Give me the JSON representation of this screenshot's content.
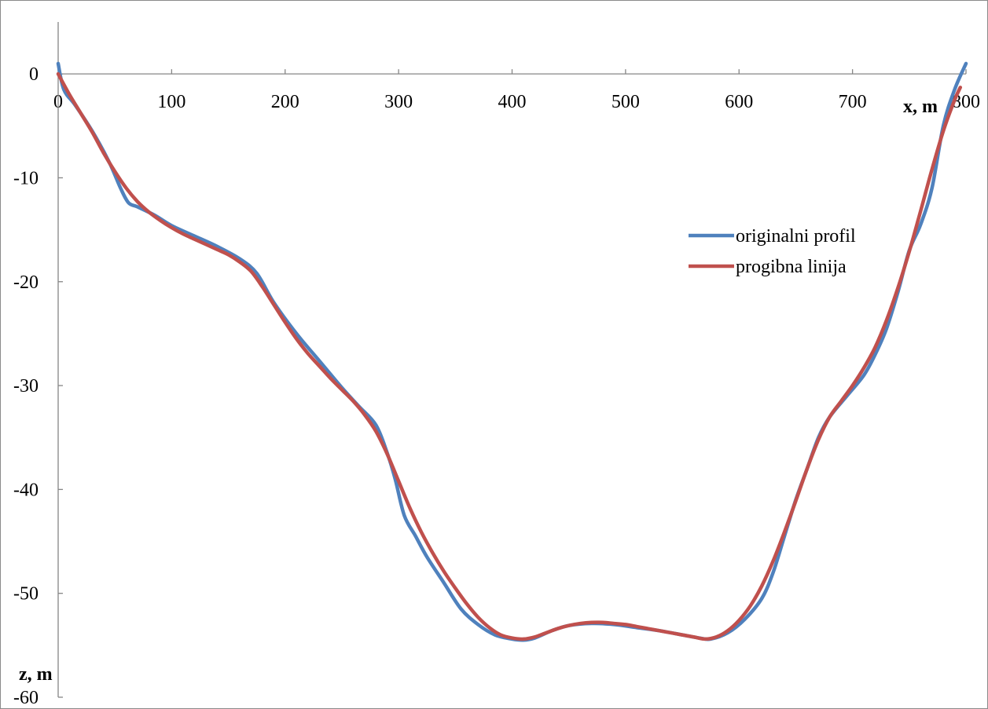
{
  "chart_data": {
    "type": "line",
    "title": "",
    "xlabel": "x, m",
    "ylabel": "z, m",
    "xlim": [
      0,
      800
    ],
    "ylim": [
      -60,
      5
    ],
    "x_ticks": [
      0,
      100,
      200,
      300,
      400,
      500,
      600,
      700,
      800
    ],
    "y_ticks": [
      0,
      -10,
      -20,
      -30,
      -40,
      -50,
      -60
    ],
    "grid": false,
    "legend_position": "right",
    "series": [
      {
        "name": "originalni profil",
        "color": "#4F81BD",
        "points": [
          [
            0,
            1
          ],
          [
            5,
            -1.5
          ],
          [
            15,
            -3
          ],
          [
            30,
            -5.5
          ],
          [
            45,
            -8.5
          ],
          [
            55,
            -11
          ],
          [
            62,
            -12.4
          ],
          [
            70,
            -12.8
          ],
          [
            85,
            -13.6
          ],
          [
            100,
            -14.6
          ],
          [
            120,
            -15.6
          ],
          [
            140,
            -16.6
          ],
          [
            160,
            -17.8
          ],
          [
            175,
            -19.2
          ],
          [
            190,
            -22
          ],
          [
            210,
            -25
          ],
          [
            230,
            -27.6
          ],
          [
            250,
            -30.2
          ],
          [
            265,
            -32
          ],
          [
            280,
            -33.8
          ],
          [
            290,
            -36.5
          ],
          [
            297,
            -39
          ],
          [
            305,
            -42.5
          ],
          [
            315,
            -44.5
          ],
          [
            325,
            -46.5
          ],
          [
            340,
            -49
          ],
          [
            355,
            -51.5
          ],
          [
            370,
            -53
          ],
          [
            385,
            -54
          ],
          [
            400,
            -54.4
          ],
          [
            410,
            -54.5
          ],
          [
            420,
            -54.3
          ],
          [
            435,
            -53.6
          ],
          [
            450,
            -53.1
          ],
          [
            470,
            -52.9
          ],
          [
            490,
            -53
          ],
          [
            510,
            -53.3
          ],
          [
            530,
            -53.6
          ],
          [
            550,
            -54
          ],
          [
            565,
            -54.3
          ],
          [
            575,
            -54.4
          ],
          [
            590,
            -53.8
          ],
          [
            605,
            -52.5
          ],
          [
            620,
            -50.5
          ],
          [
            630,
            -48
          ],
          [
            640,
            -44.5
          ],
          [
            650,
            -41
          ],
          [
            660,
            -38
          ],
          [
            670,
            -35
          ],
          [
            680,
            -33
          ],
          [
            695,
            -31
          ],
          [
            710,
            -29
          ],
          [
            720,
            -27
          ],
          [
            730,
            -24.5
          ],
          [
            740,
            -21
          ],
          [
            750,
            -17
          ],
          [
            760,
            -14.5
          ],
          [
            770,
            -11
          ],
          [
            780,
            -5
          ],
          [
            790,
            -1.5
          ],
          [
            800,
            1
          ]
        ]
      },
      {
        "name": "progibna linija",
        "color": "#C0504D",
        "points": [
          [
            0,
            0
          ],
          [
            10,
            -2
          ],
          [
            20,
            -3.8
          ],
          [
            30,
            -5.6
          ],
          [
            40,
            -7.6
          ],
          [
            50,
            -9.4
          ],
          [
            60,
            -11
          ],
          [
            70,
            -12.3
          ],
          [
            80,
            -13.3
          ],
          [
            90,
            -14.1
          ],
          [
            100,
            -14.8
          ],
          [
            110,
            -15.4
          ],
          [
            120,
            -15.9
          ],
          [
            130,
            -16.4
          ],
          [
            140,
            -16.9
          ],
          [
            150,
            -17.4
          ],
          [
            160,
            -18.1
          ],
          [
            170,
            -19
          ],
          [
            180,
            -20.5
          ],
          [
            190,
            -22.2
          ],
          [
            200,
            -23.9
          ],
          [
            210,
            -25.5
          ],
          [
            220,
            -26.9
          ],
          [
            230,
            -28.1
          ],
          [
            240,
            -29.3
          ],
          [
            250,
            -30.4
          ],
          [
            260,
            -31.5
          ],
          [
            270,
            -32.8
          ],
          [
            280,
            -34.4
          ],
          [
            290,
            -36.6
          ],
          [
            300,
            -39.2
          ],
          [
            310,
            -41.8
          ],
          [
            320,
            -44.1
          ],
          [
            330,
            -46.1
          ],
          [
            340,
            -47.9
          ],
          [
            350,
            -49.5
          ],
          [
            360,
            -51
          ],
          [
            370,
            -52.3
          ],
          [
            380,
            -53.3
          ],
          [
            390,
            -54
          ],
          [
            400,
            -54.3
          ],
          [
            410,
            -54.4
          ],
          [
            420,
            -54.2
          ],
          [
            430,
            -53.8
          ],
          [
            440,
            -53.4
          ],
          [
            450,
            -53.1
          ],
          [
            460,
            -52.9
          ],
          [
            470,
            -52.8
          ],
          [
            480,
            -52.8
          ],
          [
            490,
            -52.9
          ],
          [
            500,
            -53
          ],
          [
            510,
            -53.2
          ],
          [
            520,
            -53.4
          ],
          [
            530,
            -53.6
          ],
          [
            540,
            -53.8
          ],
          [
            550,
            -54
          ],
          [
            560,
            -54.2
          ],
          [
            570,
            -54.4
          ],
          [
            580,
            -54.2
          ],
          [
            590,
            -53.6
          ],
          [
            600,
            -52.6
          ],
          [
            610,
            -51.2
          ],
          [
            620,
            -49.3
          ],
          [
            630,
            -46.9
          ],
          [
            640,
            -44.1
          ],
          [
            650,
            -41.1
          ],
          [
            660,
            -38
          ],
          [
            670,
            -35.2
          ],
          [
            680,
            -33
          ],
          [
            690,
            -31.5
          ],
          [
            700,
            -30
          ],
          [
            710,
            -28.3
          ],
          [
            720,
            -26.3
          ],
          [
            730,
            -23.7
          ],
          [
            740,
            -20.6
          ],
          [
            750,
            -17.1
          ],
          [
            760,
            -13.2
          ],
          [
            770,
            -9.2
          ],
          [
            780,
            -5.5
          ],
          [
            790,
            -2.5
          ],
          [
            795,
            -1.3
          ]
        ]
      }
    ]
  }
}
